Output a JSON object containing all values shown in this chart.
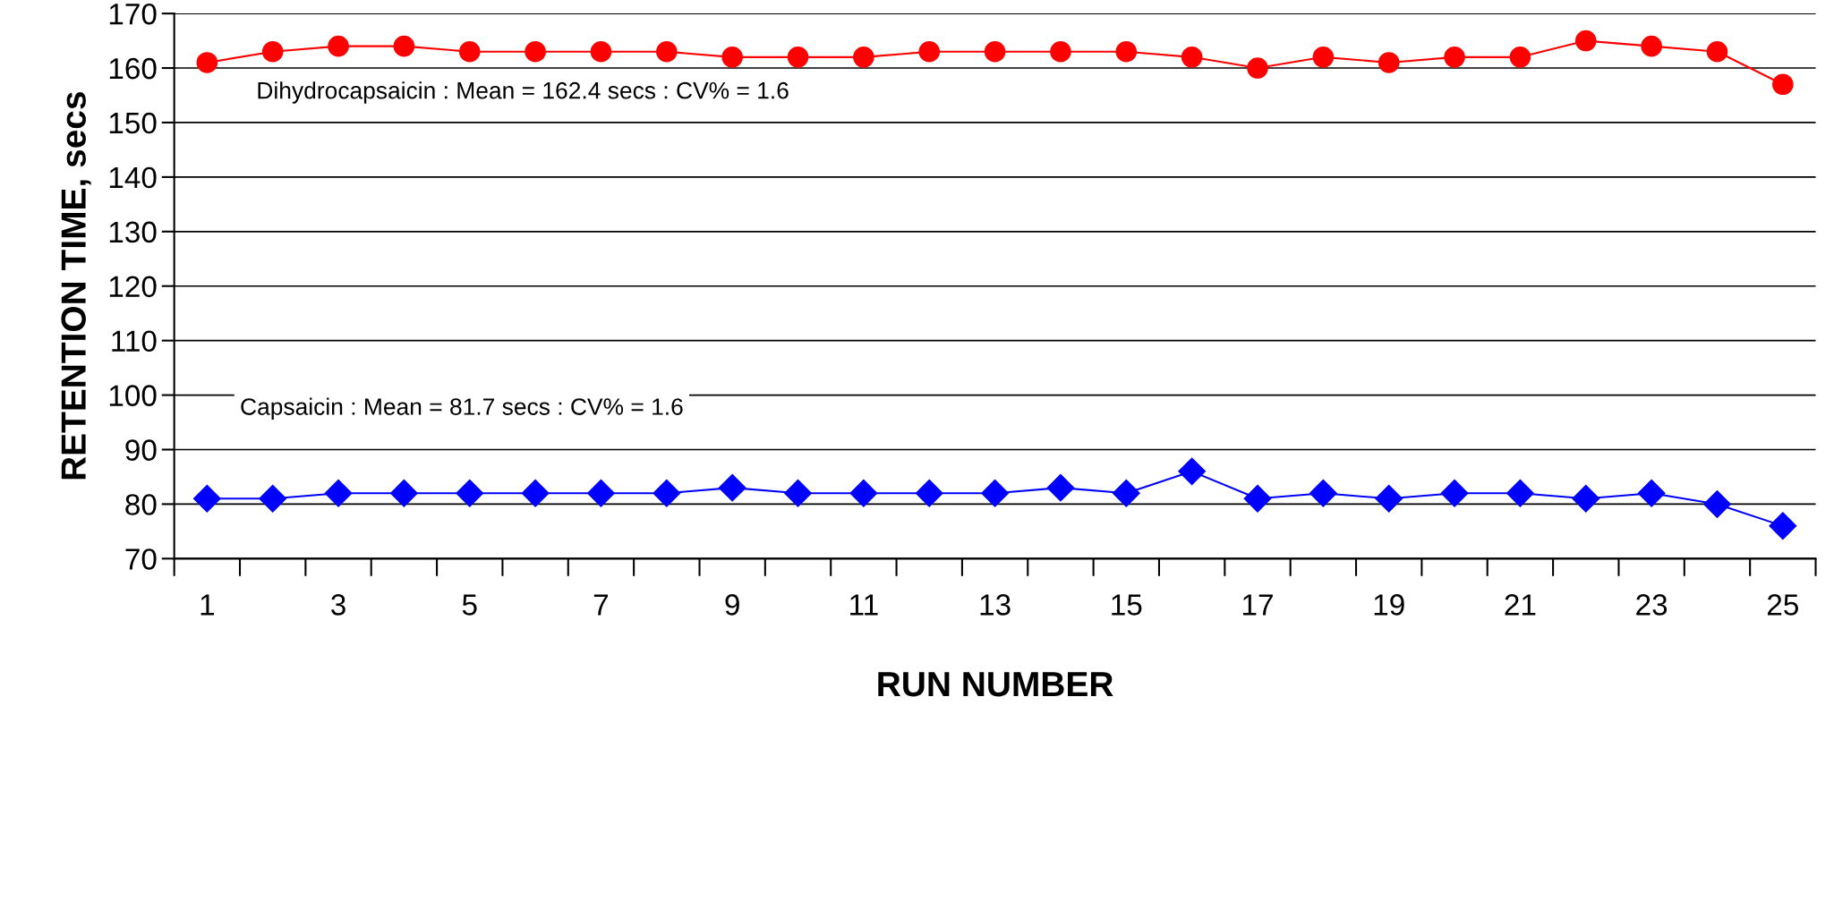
{
  "chart_data": {
    "type": "line",
    "xlabel": "RUN NUMBER",
    "ylabel": "RETENTION TIME, secs",
    "categories": [
      "1",
      null,
      "3",
      null,
      "5",
      null,
      "7",
      null,
      "9",
      null,
      "11",
      null,
      "13",
      null,
      "15",
      null,
      "17",
      null,
      "19",
      null,
      "21",
      null,
      "23",
      null,
      "25"
    ],
    "series": [
      {
        "color": "#ff0000",
        "marker": "circle",
        "values": [
          161,
          163,
          164,
          164,
          163,
          163,
          163,
          163,
          162,
          162,
          162,
          163,
          163,
          163,
          163,
          162,
          160,
          162,
          161,
          162,
          162,
          165,
          164,
          163,
          157
        ]
      },
      {
        "color": "#0000ff",
        "marker": "diamond",
        "values": [
          81,
          81,
          82,
          82,
          82,
          82,
          82,
          82,
          83,
          82,
          82,
          82,
          82,
          83,
          82,
          86,
          81,
          82,
          81,
          82,
          82,
          81,
          82,
          80,
          76
        ]
      }
    ],
    "ylim": [
      70,
      170
    ],
    "yticks": [
      70,
      80,
      90,
      100,
      110,
      120,
      130,
      140,
      150,
      160,
      170
    ],
    "grid": "y",
    "legend": false,
    "annotations": [
      "Dihydrocapsaicin : Mean = 162.4 secs : CV% = 1.6",
      "Capsaicin : Mean = 81.7 secs : CV% = 1.6"
    ]
  }
}
